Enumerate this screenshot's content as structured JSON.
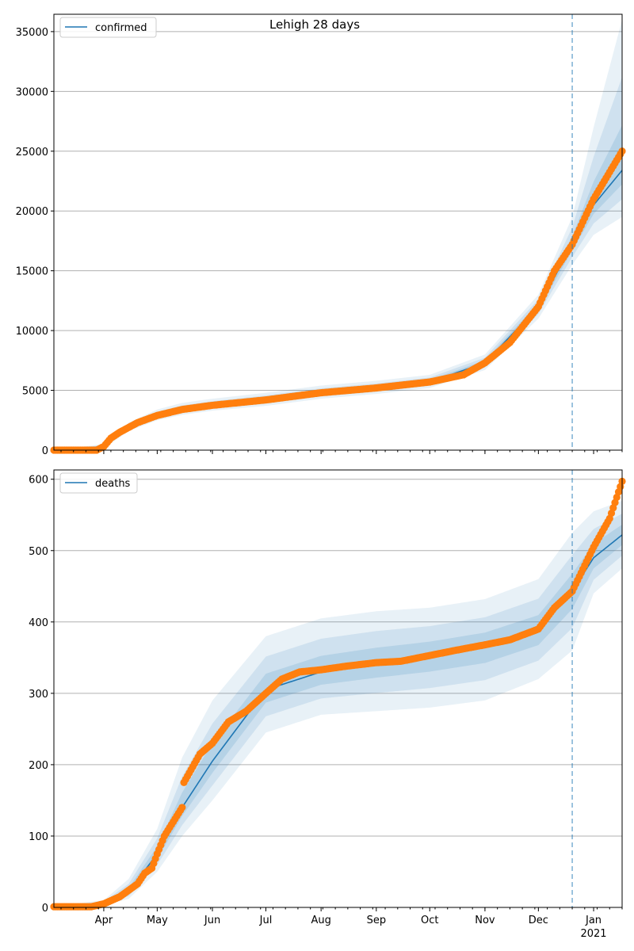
{
  "chart_data": [
    {
      "type": "line",
      "title": "Lehigh 28 days",
      "legend": {
        "label": "confirmed",
        "placement": "top-left"
      },
      "ylim": [
        0,
        36450
      ],
      "yticks": [
        0,
        5000,
        10000,
        15000,
        20000,
        25000,
        30000,
        35000
      ],
      "grid": "horizontal",
      "forecast_start": "2020-12-20",
      "x_start": "2020-03-04",
      "x_end": "2021-01-17",
      "keypoint_dates": [
        "2020-03-04",
        "2020-04-01",
        "2020-04-15",
        "2020-05-01",
        "2020-05-15",
        "2020-06-01",
        "2020-07-01",
        "2020-08-01",
        "2020-09-01",
        "2020-10-01",
        "2020-11-01",
        "2020-12-01",
        "2020-12-20",
        "2021-01-01",
        "2021-01-17"
      ],
      "model": [
        0,
        300,
        1900,
        2900,
        3400,
        3750,
        4200,
        4800,
        5200,
        5700,
        7300,
        12000,
        17200,
        20500,
        23400
      ],
      "band_upper": [
        0,
        500,
        2300,
        3400,
        3950,
        4300,
        4800,
        5400,
        5800,
        6300,
        8000,
        13000,
        19500,
        27000,
        36000
      ],
      "band_lower": [
        0,
        150,
        1600,
        2500,
        2950,
        3300,
        3700,
        4300,
        4700,
        5200,
        6700,
        11000,
        15500,
        18000,
        19500
      ],
      "observed": {
        "dates": [
          "2020-03-04",
          "2020-03-28",
          "2020-04-01",
          "2020-04-05",
          "2020-04-10",
          "2020-04-20",
          "2020-05-01",
          "2020-05-15",
          "2020-06-01",
          "2020-07-01",
          "2020-08-01",
          "2020-09-01",
          "2020-10-01",
          "2020-10-20",
          "2020-11-01",
          "2020-11-15",
          "2020-12-01",
          "2020-12-10",
          "2020-12-20",
          "2021-01-01",
          "2021-01-17"
        ],
        "values": [
          0,
          0,
          300,
          1000,
          1500,
          2300,
          2900,
          3400,
          3750,
          4200,
          4800,
          5200,
          5700,
          6300,
          7300,
          9000,
          12000,
          15000,
          17200,
          21000,
          25000
        ]
      }
    },
    {
      "type": "line",
      "legend": {
        "label": "deaths",
        "placement": "top-left"
      },
      "ylim": [
        0,
        613
      ],
      "yticks": [
        0,
        100,
        200,
        300,
        400,
        500,
        600
      ],
      "grid": "horizontal",
      "forecast_start": "2020-12-20",
      "xticks": [
        "Apr",
        "May",
        "Jun",
        "Jul",
        "Aug",
        "Sep",
        "Oct",
        "Nov",
        "Dec",
        "Jan"
      ],
      "xtick_dates": [
        "2020-04-01",
        "2020-05-01",
        "2020-06-01",
        "2020-07-01",
        "2020-08-01",
        "2020-09-01",
        "2020-10-01",
        "2020-11-01",
        "2020-12-01",
        "2021-01-01"
      ],
      "year_label": "2021",
      "keypoint_dates": [
        "2020-03-04",
        "2020-04-01",
        "2020-04-15",
        "2020-05-01",
        "2020-05-15",
        "2020-06-01",
        "2020-07-01",
        "2020-08-01",
        "2020-09-01",
        "2020-10-01",
        "2020-11-01",
        "2020-12-01",
        "2020-12-20",
        "2021-01-01",
        "2021-01-17"
      ],
      "model": [
        1,
        5,
        22,
        75,
        140,
        205,
        305,
        330,
        342,
        352,
        365,
        388,
        443,
        490,
        522
      ],
      "band_upper": [
        2,
        10,
        40,
        110,
        210,
        290,
        380,
        405,
        415,
        420,
        432,
        460,
        525,
        555,
        570
      ],
      "band_lower": [
        0,
        3,
        12,
        50,
        100,
        150,
        245,
        270,
        275,
        280,
        290,
        320,
        360,
        440,
        475
      ],
      "observed": {
        "dates": [
          "2020-03-04",
          "2020-03-25",
          "2020-04-01",
          "2020-04-10",
          "2020-04-20",
          "2020-04-24",
          "2020-04-28",
          "2020-05-01",
          "2020-05-05",
          "2020-05-10",
          "2020-05-15",
          "2020-05-16",
          "2020-05-25",
          "2020-06-01",
          "2020-06-10",
          "2020-06-20",
          "2020-07-01",
          "2020-07-10",
          "2020-07-20",
          "2020-08-01",
          "2020-08-15",
          "2020-09-01",
          "2020-09-15",
          "2020-10-01",
          "2020-10-15",
          "2020-11-01",
          "2020-11-15",
          "2020-12-01",
          "2020-12-10",
          "2020-12-20",
          "2021-01-01",
          "2021-01-10",
          "2021-01-17"
        ],
        "values": [
          1,
          1,
          5,
          15,
          33,
          48,
          55,
          75,
          100,
          120,
          140,
          175,
          215,
          230,
          260,
          275,
          300,
          320,
          330,
          333,
          338,
          343,
          345,
          353,
          360,
          368,
          375,
          390,
          420,
          443,
          505,
          545,
          597
        ]
      }
    }
  ]
}
